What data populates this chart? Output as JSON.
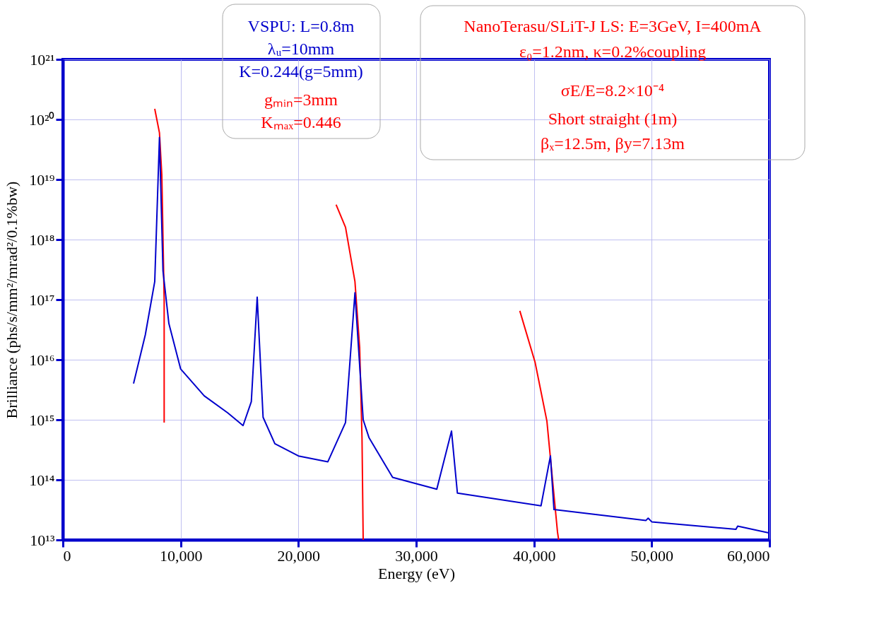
{
  "chart_data": {
    "type": "line",
    "xlabel": "Energy (eV)",
    "ylabel": "Brilliance (phs/s/mm²/mrad²/0.1%bw)",
    "log": "y",
    "grid": true,
    "legend": false,
    "marker": "none",
    "line_style": "solid",
    "xlim": [
      0,
      60000
    ],
    "xticks": [
      0,
      {
        "value": 10000,
        "label": "10,000"
      },
      {
        "value": 20000,
        "label": "20,000"
      },
      {
        "value": 30000,
        "label": "30,000"
      },
      {
        "value": 40000,
        "label": "40,000"
      },
      {
        "value": 50000,
        "label": "50,000"
      },
      {
        "value": 60000,
        "label": "60,000"
      }
    ],
    "ylim": [
      10000000000000.0,
      1e+21
    ],
    "yticks": [
      {
        "value": 10000000000000.0,
        "label": "10¹³"
      },
      {
        "value": 100000000000000.0,
        "label": "10¹⁴"
      },
      {
        "value": 1000000000000000.0,
        "label": "10¹⁵"
      },
      {
        "value": 1e+16,
        "label": "10¹⁶"
      },
      {
        "value": 1e+17,
        "label": "10¹⁷"
      },
      {
        "value": 1e+18,
        "label": "10¹⁸"
      },
      {
        "value": 1e+19,
        "label": "10¹⁹"
      },
      {
        "value": 1e+20,
        "label": "10²⁰"
      },
      {
        "value": 1e+21,
        "label": "10²¹"
      }
    ],
    "series": [
      {
        "color": "#0000cc",
        "x": [
          6000,
          7000,
          7800,
          8200,
          8500,
          9000,
          10000,
          12000,
          14000,
          15300,
          16000,
          16500,
          17000,
          18000,
          20000,
          22500,
          24000,
          24800,
          25500,
          26000,
          28000,
          31750,
          33000,
          33500,
          40600,
          41400,
          41700,
          49500,
          49700,
          50000,
          57150,
          57300,
          60000
        ],
        "values": [
          4000000000000000.0,
          2.6e+16,
          2e+17,
          5e+19,
          3e+17,
          4e+16,
          7000000000000000.0,
          2500000000000000.0,
          1300000000000000.0,
          800000000000000.0,
          2000000000000000.0,
          1.1e+17,
          1100000000000000.0,
          400000000000000.0,
          250000000000000.0,
          200000000000000.0,
          900000000000000.0,
          1.3e+17,
          1000000000000000.0,
          500000000000000.0,
          110000000000000.0,
          70000000000000.0,
          650000000000000.0,
          60000000000000.0,
          37000000000000.0,
          250000000000000.0,
          32000000000000.0,
          21000000000000.0,
          23000000000000.0,
          20000000000000.0,
          15000000000000.0,
          17000000000000.0,
          13000000000000.0
        ]
      },
      {
        "color": "#ff0000",
        "x": [
          7800,
          8200,
          8400,
          8600,
          8600
        ],
        "values": [
          1.5e+20,
          6e+19,
          1.2e+19,
          1e+17,
          900000000000000.0
        ]
      },
      {
        "color": "#ff0000",
        "x": [
          23200,
          24000,
          24800,
          25200,
          25400,
          25500
        ],
        "values": [
          3.8e+18,
          1.6e+18,
          2e+17,
          1.6e+16,
          500000000000000.0,
          10000000000000.0
        ]
      },
      {
        "color": "#ff0000",
        "x": [
          38800,
          40100,
          41100,
          42000,
          42100
        ],
        "values": [
          6.5e+16,
          9000000000000000.0,
          950000000000000.0,
          13500000000000.0,
          10000000000000.0
        ]
      }
    ],
    "annotations": [
      "VSPU: L=0.8m",
      "λᵤ=10mm",
      "K=0.244(g=5mm)",
      "gₘᵢₙ=3mm",
      "Kₘₐₓ=0.446",
      "NanoTerasu/SLiT-J LS: E=3GeV, I=400mA",
      "ε₀=1.2nm, κ=0.2%coupling",
      "σE/E=8.2×10⁻⁴",
      "Short straight (1m)",
      "βₓ=12.5m, βy=7.13m"
    ]
  }
}
